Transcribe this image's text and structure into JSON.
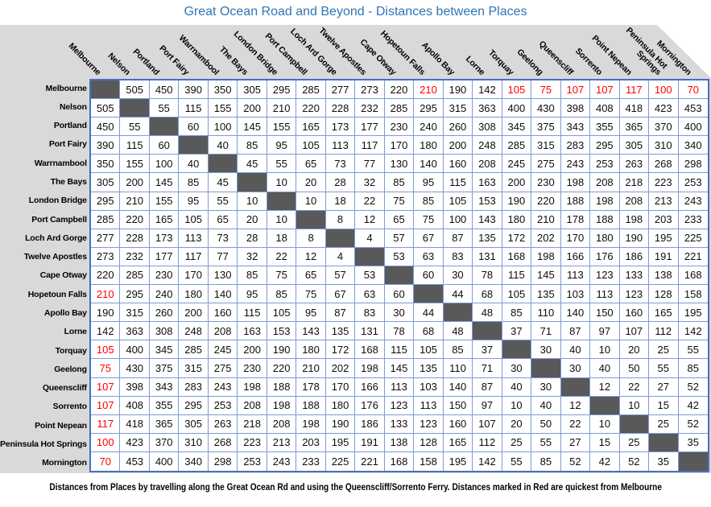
{
  "title": "Great Ocean Road and Beyond - Distances between Places",
  "footer_note": "Distances from Places by travelling along the Great Ocean Rd and using the Queenscliff/Sorrento Ferry. Distances marked in Red are quickest from Melbourne",
  "colors": {
    "title_blue": "#2E75B6",
    "grid_outer_border": "#4472C4",
    "grid_inner_border": "#7C9BD4",
    "diagonal_fill": "#595959",
    "header_background": "#D9D9D9",
    "highlight_red": "#FF0000",
    "number_text": "#0D0D0D"
  },
  "header_wrap": {
    "Peninsula Hot Springs": [
      "Peninsula Hot",
      "Springs"
    ]
  },
  "chart_data": {
    "type": "table",
    "title": "Great Ocean Road and Beyond - Distances between Places",
    "description": "Symmetric distance matrix between 21 places; diagonal cells are shaded dark gray (self-to-self); red values are quickest distances from Melbourne",
    "places": [
      "Melbourne",
      "Nelson",
      "Portland",
      "Port Fairy",
      "Warrnambool",
      "The Bays",
      "London Bridge",
      "Port Campbell",
      "Loch Ard Gorge",
      "Twelve Apostles",
      "Cape Otway",
      "Hopetoun Falls",
      "Apollo Bay",
      "Lorne",
      "Torquay",
      "Geelong",
      "Queenscliff",
      "Sorrento",
      "Point Nepean",
      "Peninsula Hot Springs",
      "Mornington"
    ],
    "matrix": [
      [
        null,
        505,
        450,
        390,
        350,
        305,
        295,
        285,
        277,
        273,
        220,
        210,
        190,
        142,
        105,
        75,
        107,
        107,
        117,
        100,
        70
      ],
      [
        505,
        null,
        55,
        115,
        155,
        200,
        210,
        220,
        228,
        232,
        285,
        295,
        315,
        363,
        400,
        430,
        398,
        408,
        418,
        423,
        453
      ],
      [
        450,
        55,
        null,
        60,
        100,
        145,
        155,
        165,
        173,
        177,
        230,
        240,
        260,
        308,
        345,
        375,
        343,
        355,
        365,
        370,
        400
      ],
      [
        390,
        115,
        60,
        null,
        40,
        85,
        95,
        105,
        113,
        117,
        170,
        180,
        200,
        248,
        285,
        315,
        283,
        295,
        305,
        310,
        340
      ],
      [
        350,
        155,
        100,
        40,
        null,
        45,
        55,
        65,
        73,
        77,
        130,
        140,
        160,
        208,
        245,
        275,
        243,
        253,
        263,
        268,
        298
      ],
      [
        305,
        200,
        145,
        85,
        45,
        null,
        10,
        20,
        28,
        32,
        85,
        95,
        115,
        163,
        200,
        230,
        198,
        208,
        218,
        223,
        253
      ],
      [
        295,
        210,
        155,
        95,
        55,
        10,
        null,
        10,
        18,
        22,
        75,
        85,
        105,
        153,
        190,
        220,
        188,
        198,
        208,
        213,
        243
      ],
      [
        285,
        220,
        165,
        105,
        65,
        20,
        10,
        null,
        8,
        12,
        65,
        75,
        100,
        143,
        180,
        210,
        178,
        188,
        198,
        203,
        233
      ],
      [
        277,
        228,
        173,
        113,
        73,
        28,
        18,
        8,
        null,
        4,
        57,
        67,
        87,
        135,
        172,
        202,
        170,
        180,
        190,
        195,
        225
      ],
      [
        273,
        232,
        177,
        117,
        77,
        32,
        22,
        12,
        4,
        null,
        53,
        63,
        83,
        131,
        168,
        198,
        166,
        176,
        186,
        191,
        221
      ],
      [
        220,
        285,
        230,
        170,
        130,
        85,
        75,
        65,
        57,
        53,
        null,
        60,
        30,
        78,
        115,
        145,
        113,
        123,
        133,
        138,
        168
      ],
      [
        210,
        295,
        240,
        180,
        140,
        95,
        85,
        75,
        67,
        63,
        60,
        null,
        44,
        68,
        105,
        135,
        103,
        113,
        123,
        128,
        158
      ],
      [
        190,
        315,
        260,
        200,
        160,
        115,
        105,
        95,
        87,
        83,
        30,
        44,
        null,
        48,
        85,
        110,
        140,
        150,
        160,
        165,
        195
      ],
      [
        142,
        363,
        308,
        248,
        208,
        163,
        153,
        143,
        135,
        131,
        78,
        68,
        48,
        null,
        37,
        71,
        87,
        97,
        107,
        112,
        142
      ],
      [
        105,
        400,
        345,
        285,
        245,
        200,
        190,
        180,
        172,
        168,
        115,
        105,
        85,
        37,
        null,
        30,
        40,
        10,
        20,
        25,
        55
      ],
      [
        75,
        430,
        375,
        315,
        275,
        230,
        220,
        210,
        202,
        198,
        145,
        135,
        110,
        71,
        30,
        null,
        30,
        40,
        50,
        55,
        85
      ],
      [
        107,
        398,
        343,
        283,
        243,
        198,
        188,
        178,
        170,
        166,
        113,
        103,
        140,
        87,
        40,
        30,
        null,
        12,
        22,
        27,
        52
      ],
      [
        107,
        408,
        355,
        295,
        253,
        208,
        198,
        188,
        180,
        176,
        123,
        113,
        150,
        97,
        10,
        40,
        12,
        null,
        10,
        15,
        42
      ],
      [
        117,
        418,
        365,
        305,
        263,
        218,
        208,
        198,
        190,
        186,
        133,
        123,
        160,
        107,
        20,
        50,
        22,
        10,
        null,
        25,
        52
      ],
      [
        100,
        423,
        370,
        310,
        268,
        223,
        213,
        203,
        195,
        191,
        138,
        128,
        165,
        112,
        25,
        55,
        27,
        15,
        25,
        null,
        35
      ],
      [
        70,
        453,
        400,
        340,
        298,
        253,
        243,
        233,
        225,
        221,
        168,
        158,
        195,
        142,
        55,
        85,
        52,
        42,
        52,
        35,
        null
      ]
    ],
    "red_rule": "cells in the Melbourne row/column whose counterpart place is in red_from_melbourne are shown in red",
    "red_from_melbourne": [
      "Hopetoun Falls",
      "Torquay",
      "Geelong",
      "Queenscliff",
      "Sorrento",
      "Point Nepean",
      "Peninsula Hot Springs",
      "Mornington"
    ]
  }
}
